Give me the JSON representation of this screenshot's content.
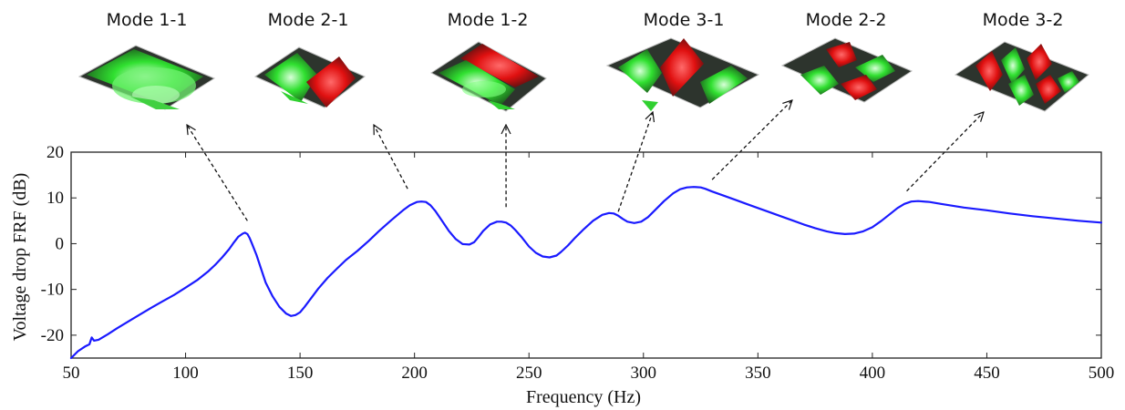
{
  "chart_data": {
    "type": "line",
    "title": "",
    "xlabel": "Frequency (Hz)",
    "ylabel": "Voltage drop FRF (dB)",
    "xlim": [
      50,
      500
    ],
    "ylim": [
      -25,
      20
    ],
    "xticks": [
      50,
      100,
      150,
      200,
      250,
      300,
      350,
      400,
      450,
      500
    ],
    "yticks": [
      -20,
      -10,
      0,
      10,
      20
    ],
    "grid": false,
    "line_color": "#1a1aff",
    "series": [
      {
        "name": "",
        "x": [
          50,
          53,
          56,
          58,
          59,
          60,
          62,
          66,
          70,
          75,
          80,
          85,
          90,
          95,
          100,
          105,
          110,
          113,
          116,
          119,
          121,
          123,
          125,
          126,
          127,
          128,
          129,
          131,
          133,
          135,
          138,
          141,
          144,
          146,
          148,
          150,
          152,
          155,
          158,
          162,
          166,
          170,
          175,
          180,
          185,
          190,
          195,
          198,
          201,
          203,
          205,
          207,
          209,
          212,
          215,
          218,
          221,
          224,
          226,
          228,
          230,
          233,
          236,
          238,
          240,
          242,
          244,
          247,
          250,
          253,
          256,
          259,
          262,
          264,
          267,
          270,
          274,
          278,
          282,
          285,
          287,
          289,
          291,
          293,
          296,
          299,
          302,
          305,
          309,
          313,
          316,
          319,
          322,
          325,
          327,
          330,
          335,
          340,
          345,
          350,
          355,
          360,
          365,
          370,
          375,
          380,
          384,
          388,
          392,
          396,
          400,
          404,
          408,
          411,
          414,
          417,
          420,
          425,
          430,
          440,
          450,
          460,
          470,
          480,
          490,
          500
        ],
        "y": [
          -25,
          -23.5,
          -22.5,
          -22,
          -20.5,
          -21.2,
          -21,
          -19.8,
          -18.5,
          -17,
          -15.5,
          -14,
          -12.6,
          -11.2,
          -9.6,
          -8,
          -6,
          -4.6,
          -3,
          -1.2,
          0.2,
          1.5,
          2.2,
          2.4,
          2.1,
          1.2,
          0,
          -2.5,
          -5.5,
          -8.5,
          -11.5,
          -13.8,
          -15.3,
          -15.8,
          -15.6,
          -15,
          -13.8,
          -11.8,
          -9.8,
          -7.5,
          -5.5,
          -3.6,
          -1.6,
          0.6,
          3,
          5.2,
          7.3,
          8.4,
          9.1,
          9.2,
          9.1,
          8.4,
          7.2,
          5,
          2.8,
          1,
          -0.1,
          -0.2,
          0.3,
          1.5,
          2.8,
          4.2,
          4.8,
          4.8,
          4.6,
          4,
          3,
          1.3,
          -0.6,
          -2,
          -2.8,
          -3,
          -2.6,
          -1.8,
          -0.4,
          1.2,
          3.2,
          5,
          6.3,
          6.7,
          6.6,
          6.1,
          5.4,
          4.8,
          4.5,
          4.8,
          5.8,
          7.3,
          9.3,
          11,
          11.9,
          12.3,
          12.4,
          12.3,
          12,
          11.4,
          10.5,
          9.6,
          8.7,
          7.8,
          6.9,
          6,
          5.1,
          4.2,
          3.4,
          2.7,
          2.3,
          2.1,
          2.2,
          2.7,
          3.6,
          5,
          6.6,
          7.8,
          8.7,
          9.2,
          9.3,
          9.1,
          8.7,
          7.9,
          7.3,
          6.6,
          6,
          5.5,
          5,
          4.6
        ]
      }
    ],
    "modes": [
      {
        "label": "Mode 1-1",
        "at": [
          127,
          5
        ]
      },
      {
        "label": "Mode 2-1",
        "at": [
          197,
          12
        ]
      },
      {
        "label": "Mode 1-2",
        "at": [
          240,
          8
        ]
      },
      {
        "label": "Mode 3-1",
        "at": [
          289,
          7
        ]
      },
      {
        "label": "Mode 2-2",
        "at": [
          330,
          14
        ]
      },
      {
        "label": "Mode 3-2",
        "at": [
          415,
          11.5
        ]
      }
    ]
  }
}
